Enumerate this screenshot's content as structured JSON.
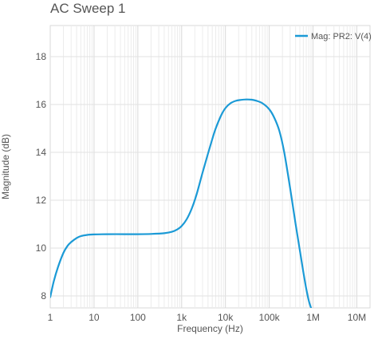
{
  "chart_data": {
    "type": "line",
    "title": "AC Sweep 1",
    "xlabel": "Frequency (Hz)",
    "ylabel": "Magnitude (dB)",
    "xscale": "log",
    "xlim": [
      1,
      20000000
    ],
    "ylim": [
      7.5,
      19.3
    ],
    "xticks": [
      {
        "value": 1,
        "label": "1"
      },
      {
        "value": 10,
        "label": "10"
      },
      {
        "value": 100,
        "label": "100"
      },
      {
        "value": 1000,
        "label": "1k"
      },
      {
        "value": 10000,
        "label": "10k"
      },
      {
        "value": 100000,
        "label": "100k"
      },
      {
        "value": 1000000,
        "label": "1M"
      },
      {
        "value": 10000000,
        "label": "10M"
      }
    ],
    "yticks": [
      8,
      10,
      12,
      14,
      16,
      18
    ],
    "grid": true,
    "legend_position": "top-right",
    "series": [
      {
        "name": "Mag: PR2: V(4)",
        "color": "#1b9ad6",
        "x": [
          1,
          1.2,
          1.5,
          2,
          2.5,
          3,
          4,
          5,
          7,
          10,
          20,
          50,
          100,
          200,
          400,
          600,
          800,
          1000,
          1300,
          1700,
          2200,
          3000,
          4000,
          5000,
          6000,
          8000,
          10000,
          13000,
          17000,
          22000,
          30000,
          40000,
          50000,
          70000,
          100000,
          130000,
          170000,
          220000,
          300000,
          400000,
          500000,
          600000,
          700000,
          800000,
          900000,
          1000000
        ],
        "values": [
          7.95,
          8.6,
          9.2,
          9.8,
          10.1,
          10.25,
          10.42,
          10.5,
          10.55,
          10.57,
          10.58,
          10.58,
          10.58,
          10.59,
          10.62,
          10.68,
          10.78,
          10.92,
          11.2,
          11.65,
          12.25,
          13.15,
          13.95,
          14.55,
          15.0,
          15.55,
          15.85,
          16.05,
          16.15,
          16.19,
          16.21,
          16.2,
          16.16,
          16.05,
          15.8,
          15.45,
          14.9,
          14.0,
          12.5,
          11.0,
          9.9,
          9.0,
          8.3,
          7.8,
          7.5,
          7.3
        ]
      }
    ]
  }
}
